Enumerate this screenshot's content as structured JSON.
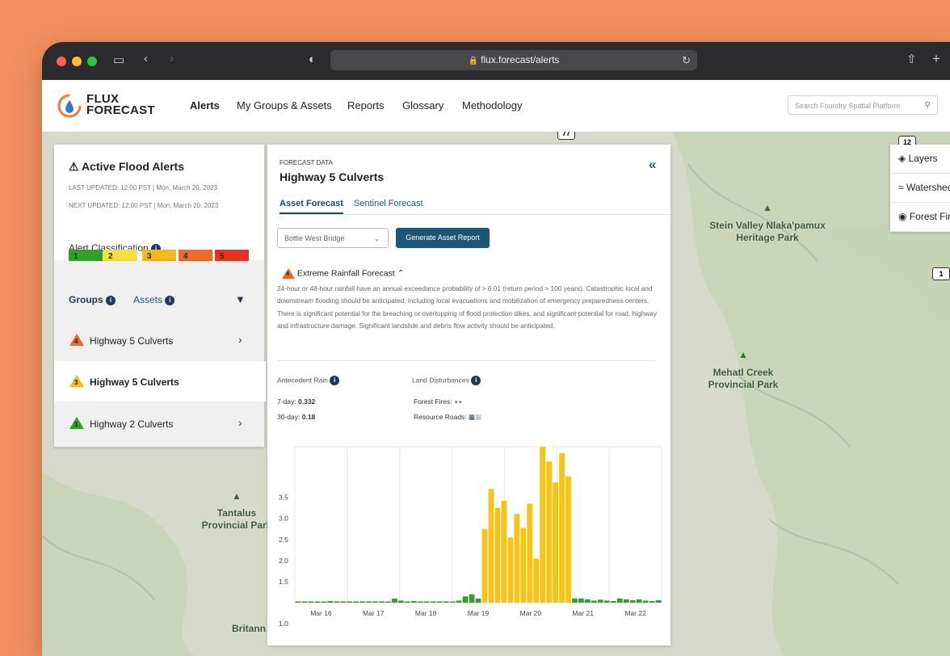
{
  "browser": {
    "url": "flux.forecast/alerts"
  },
  "app": {
    "logo_line1": "FLUX",
    "logo_line2": "FORECAST",
    "nav": [
      "Alerts",
      "My Groups & Assets",
      "Reports",
      "Glossary",
      "Methodology"
    ],
    "search_placeholder": "Search Foundry Spatial Platform"
  },
  "alerts_panel": {
    "title": "Active Flood Alerts",
    "last_updated": "LAST UPDATED: 12:00 PST | Mon, March 20, 2023",
    "next_updated": "NEXT UPDATED: 12:00 PST | Mon, March 20, 2023",
    "classification_label": "Alert Classification",
    "levels": [
      {
        "label": "1",
        "color": "#2ea323"
      },
      {
        "label": "2",
        "color": "#f7e03a"
      },
      {
        "label": "3",
        "color": "#f6b81b"
      },
      {
        "label": "4",
        "color": "#ee6a27"
      },
      {
        "label": "5",
        "color": "#e8341c"
      }
    ]
  },
  "groups_panel": {
    "tabs": [
      "Groups",
      "Assets"
    ],
    "rows": [
      {
        "label": "Highway 5 Culverts",
        "level": "4",
        "color": "#ee6a27"
      },
      {
        "label": "Highway 5 Culverts",
        "level": "3",
        "color": "#f6b81b"
      },
      {
        "label": "Highway 2 Culverts",
        "level": "1",
        "color": "#2ea323"
      }
    ]
  },
  "detail": {
    "eyebrow": "FORECAST DATA",
    "title": "Highway 5 Culverts",
    "tabs": [
      "Asset Forecast",
      "Sentinel Forecast"
    ],
    "asset_select": "Bottle West Bridge",
    "generate_button": "Generate Asset Report",
    "forecast_title": "Extreme Rainfall Forecast",
    "forecast_level": "4",
    "forecast_description": "24-hour or 48-hour rainfall have an annual exceedance probability of > 0.01 (return period > 100 years). Catastrophic local and downstream flooding should be anticipated, including local evacuations and mobilization of emergency preparedness centers. There is significant potential for the breaching or overtopping of flood protection dikes, and significant potential for road, highway and infrastructure damage. Significant landslide and debris flow activity should be anticipated.",
    "antecedent_label": "Antecedent Rain",
    "seven_day_label": "7-day:",
    "seven_day_value": "0.332",
    "thirty_day_label": "30-day:",
    "thirty_day_value": "0.18",
    "land_label": "Land Disturbances",
    "forest_fires_label": "Forest Fires:",
    "resource_roads_label": "Resource Roads:"
  },
  "map": {
    "labels": [
      "Stein Valley Nlaka'pamux Heritage Park",
      "Mehatl Creek Provincial Park",
      "Tantalus Provincial Park",
      "Britann"
    ],
    "shields": [
      "12",
      "1",
      "77"
    ],
    "layers": [
      "Layers",
      "Watersheds",
      "Forest Fires"
    ]
  },
  "chart_data": {
    "type": "bar",
    "x_ticks": [
      "Mar 16",
      "Mar 17",
      "Mar 18",
      "Mar 19",
      "Mar 20",
      "Mar 21",
      "Mar 22"
    ],
    "y_ticks": [
      "1.0",
      "1.5",
      "2.0",
      "2.5",
      "3.0",
      "3.5"
    ],
    "ylim": [
      1.0,
      4.7
    ],
    "values": [
      1.02,
      1.02,
      1.02,
      1.03,
      1.02,
      1.02,
      1.02,
      1.02,
      1.02,
      1.02,
      1.02,
      1.03,
      1.02,
      1.02,
      1.02,
      1.02,
      1.02,
      1.02,
      1.02,
      1.02,
      1.02,
      1.02,
      1.02,
      1.02,
      1.02,
      1.02,
      1.02,
      1.02,
      1.02,
      1.02,
      1.02,
      1.02,
      1.02,
      1.02,
      1.02,
      1.02,
      1.02,
      1.02,
      1.02,
      1.02,
      1.02,
      1.02,
      1.02,
      1.02,
      1.02,
      1.02,
      1.02,
      1.02,
      1.02,
      1.02,
      1.02,
      1.02,
      1.03,
      1.03,
      1.03,
      1.02,
      1.02,
      1.02,
      1.02,
      1.02,
      1.02,
      1.02,
      1.02,
      1.02,
      1.02,
      1.02,
      1.02,
      1.02,
      1.02,
      1.02
    ],
    "bars": [
      {
        "v": 1.03,
        "c": "g"
      },
      {
        "v": 1.03,
        "c": "g"
      },
      {
        "v": 1.03,
        "c": "g"
      },
      {
        "v": 1.03,
        "c": "g"
      },
      {
        "v": 1.03,
        "c": "g"
      },
      {
        "v": 1.04,
        "c": "g"
      },
      {
        "v": 1.03,
        "c": "g"
      },
      {
        "v": 1.03,
        "c": "g"
      },
      {
        "v": 1.03,
        "c": "g"
      },
      {
        "v": 1.03,
        "c": "g"
      },
      {
        "v": 1.03,
        "c": "g"
      },
      {
        "v": 1.03,
        "c": "g"
      },
      {
        "v": 1.03,
        "c": "g"
      },
      {
        "v": 1.03,
        "c": "g"
      },
      {
        "v": 1.03,
        "c": "g"
      },
      {
        "v": 1.1,
        "c": "g"
      },
      {
        "v": 1.05,
        "c": "g"
      },
      {
        "v": 1.03,
        "c": "g"
      },
      {
        "v": 1.04,
        "c": "g"
      },
      {
        "v": 1.03,
        "c": "g"
      },
      {
        "v": 1.03,
        "c": "g"
      },
      {
        "v": 1.03,
        "c": "g"
      },
      {
        "v": 1.03,
        "c": "g"
      },
      {
        "v": 1.03,
        "c": "g"
      },
      {
        "v": 1.03,
        "c": "g"
      },
      {
        "v": 1.05,
        "c": "g"
      },
      {
        "v": 1.15,
        "c": "g"
      },
      {
        "v": 1.2,
        "c": "g"
      },
      {
        "v": 1.1,
        "c": "g"
      },
      {
        "v": 2.75,
        "c": "y"
      },
      {
        "v": 3.7,
        "c": "y"
      },
      {
        "v": 3.25,
        "c": "y"
      },
      {
        "v": 3.42,
        "c": "y"
      },
      {
        "v": 2.55,
        "c": "y"
      },
      {
        "v": 3.1,
        "c": "y"
      },
      {
        "v": 2.77,
        "c": "y"
      },
      {
        "v": 3.35,
        "c": "y"
      },
      {
        "v": 2.05,
        "c": "y"
      },
      {
        "v": 4.7,
        "c": "y"
      },
      {
        "v": 4.35,
        "c": "y"
      },
      {
        "v": 3.85,
        "c": "y"
      },
      {
        "v": 4.55,
        "c": "y"
      },
      {
        "v": 4.0,
        "c": "y"
      },
      {
        "v": 1.1,
        "c": "g"
      },
      {
        "v": 1.1,
        "c": "g"
      },
      {
        "v": 1.08,
        "c": "g"
      },
      {
        "v": 1.05,
        "c": "g"
      },
      {
        "v": 1.07,
        "c": "g"
      },
      {
        "v": 1.05,
        "c": "g"
      },
      {
        "v": 1.04,
        "c": "g"
      },
      {
        "v": 1.1,
        "c": "g"
      },
      {
        "v": 1.08,
        "c": "g"
      },
      {
        "v": 1.06,
        "c": "g"
      },
      {
        "v": 1.08,
        "c": "g"
      },
      {
        "v": 1.05,
        "c": "g"
      },
      {
        "v": 1.04,
        "c": "g"
      },
      {
        "v": 1.06,
        "c": "g"
      }
    ],
    "colors": {
      "g": "#33a12a",
      "y": "#f7c21e"
    }
  }
}
